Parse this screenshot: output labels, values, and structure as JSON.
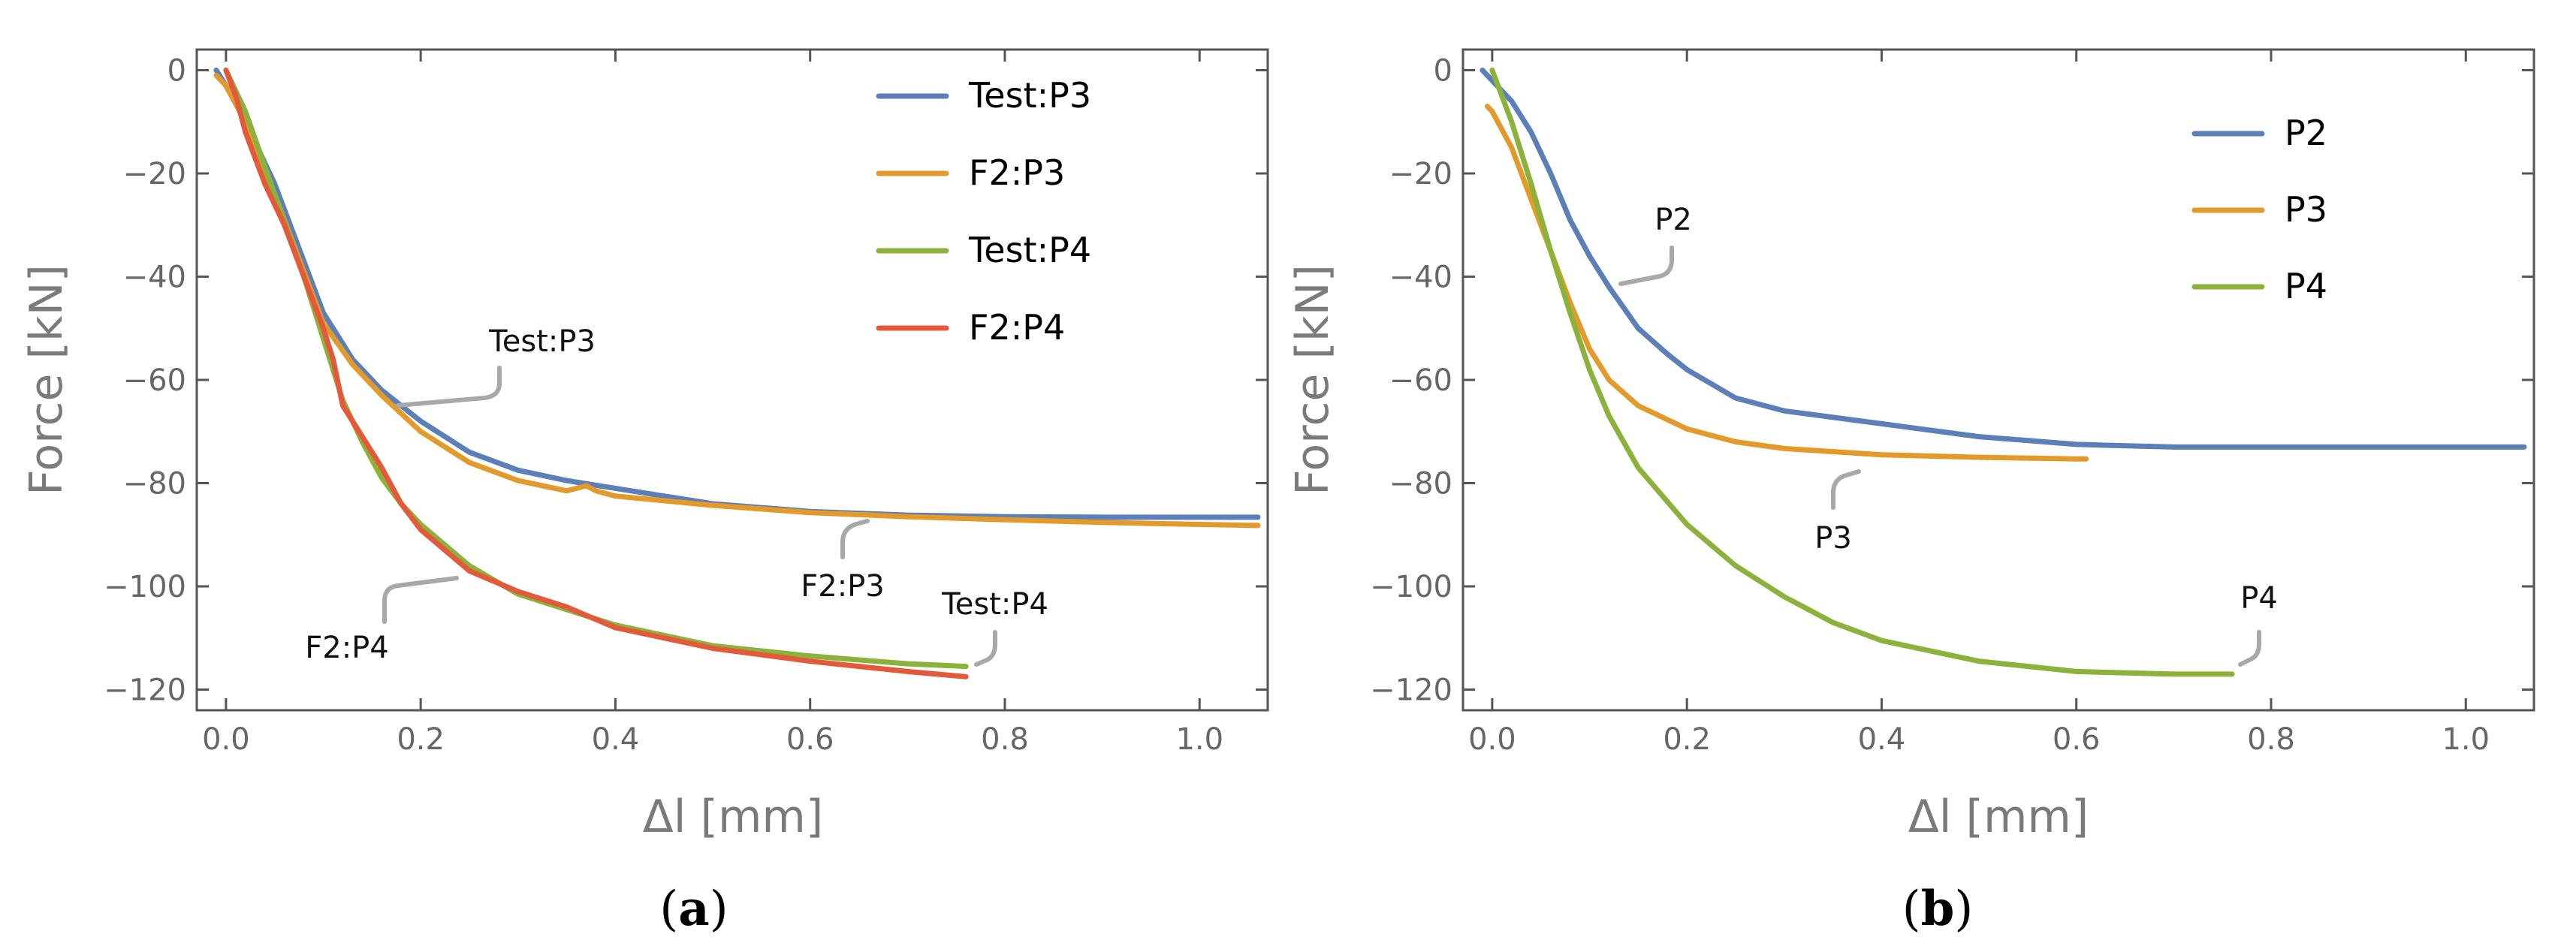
{
  "chart_data": [
    {
      "id": "a",
      "type": "line",
      "caption_letter": "a",
      "xlabel": "Δl [mm]",
      "ylabel": "Force [kN]",
      "xlim": [
        -0.03,
        1.07
      ],
      "ylim": [
        -124,
        4
      ],
      "xticks": [
        0.0,
        0.2,
        0.4,
        0.6,
        0.8,
        1.0
      ],
      "xtick_labels": [
        "0.0",
        "0.2",
        "0.4",
        "0.6",
        "0.8",
        "1.0"
      ],
      "yticks": [
        0,
        -20,
        -40,
        -60,
        -80,
        -100,
        -120
      ],
      "ytick_labels": [
        "0",
        "−20",
        "−40",
        "−60",
        "−80",
        "−100",
        "−120"
      ],
      "legend_position": "top-right",
      "series": [
        {
          "name": "Test:P3",
          "color": "#5b7fb8",
          "x": [
            -0.01,
            0.0,
            0.02,
            0.05,
            0.08,
            0.1,
            0.13,
            0.16,
            0.2,
            0.25,
            0.3,
            0.35,
            0.4,
            0.5,
            0.6,
            0.7,
            0.8,
            0.9,
            1.0,
            1.06
          ],
          "y": [
            0,
            -3,
            -10,
            -22,
            -37,
            -47,
            -56,
            -62,
            -68,
            -74,
            -77.5,
            -79.5,
            -81,
            -84,
            -85.5,
            -86.2,
            -86.5,
            -86.6,
            -86.6,
            -86.6
          ]
        },
        {
          "name": "F2:P3",
          "color": "#e49a2a",
          "x": [
            -0.01,
            0.0,
            0.02,
            0.05,
            0.08,
            0.1,
            0.13,
            0.16,
            0.2,
            0.25,
            0.3,
            0.35,
            0.37,
            0.38,
            0.4,
            0.5,
            0.6,
            0.7,
            0.8,
            0.9,
            1.0,
            1.06
          ],
          "y": [
            -1,
            -3,
            -10,
            -24,
            -39,
            -49,
            -57,
            -63,
            -70,
            -76,
            -79.5,
            -81.5,
            -80.5,
            -81.5,
            -82.5,
            -84.3,
            -85.7,
            -86.5,
            -87.1,
            -87.6,
            -88,
            -88.2
          ]
        },
        {
          "name": "Test:P4",
          "color": "#8bb23a",
          "x": [
            0.0,
            0.02,
            0.05,
            0.08,
            0.1,
            0.12,
            0.14,
            0.16,
            0.18,
            0.2,
            0.25,
            0.3,
            0.35,
            0.4,
            0.45,
            0.5,
            0.6,
            0.7,
            0.76
          ],
          "y": [
            0,
            -8,
            -24,
            -40,
            -52,
            -64,
            -72,
            -79,
            -84,
            -88,
            -96,
            -101.5,
            -104.5,
            -107.5,
            -109.5,
            -111.5,
            -113.5,
            -115,
            -115.5
          ]
        },
        {
          "name": "F2:P4",
          "color": "#e4593a",
          "x": [
            0.0,
            0.01,
            0.02,
            0.04,
            0.06,
            0.08,
            0.1,
            0.11,
            0.12,
            0.14,
            0.16,
            0.18,
            0.2,
            0.25,
            0.3,
            0.35,
            0.4,
            0.5,
            0.6,
            0.7,
            0.76
          ],
          "y": [
            0,
            -5,
            -12,
            -22,
            -30,
            -40,
            -50,
            -56,
            -65,
            -71,
            -77,
            -84,
            -89,
            -97,
            -101,
            -104,
            -108,
            -112,
            -114.5,
            -116.5,
            -117.5
          ]
        }
      ],
      "annotations": [
        {
          "text": "Test:P3",
          "x": 0.315,
          "y": -52
        },
        {
          "text": "F2:P3",
          "x": 0.645,
          "y": -99.5
        },
        {
          "text": "F2:P4",
          "x": 0.135,
          "y": -112
        },
        {
          "text": "Test:P4",
          "x": 0.795,
          "y": -103.5
        }
      ]
    },
    {
      "id": "b",
      "type": "line",
      "caption_letter": "b",
      "xlabel": "Δl [mm]",
      "ylabel": "Force [kN]",
      "xlim": [
        -0.03,
        1.07
      ],
      "ylim": [
        -124,
        4
      ],
      "xticks": [
        0.0,
        0.2,
        0.4,
        0.6,
        0.8,
        1.0
      ],
      "xtick_labels": [
        "0.0",
        "0.2",
        "0.4",
        "0.6",
        "0.8",
        "1.0"
      ],
      "yticks": [
        0,
        -20,
        -40,
        -60,
        -80,
        -100,
        -120
      ],
      "ytick_labels": [
        "0",
        "−20",
        "−40",
        "−60",
        "−80",
        "−100",
        "−120"
      ],
      "legend_position": "top-right",
      "series": [
        {
          "name": "P2",
          "color": "#5b7fb8",
          "x": [
            -0.01,
            0.0,
            0.02,
            0.04,
            0.06,
            0.08,
            0.1,
            0.12,
            0.15,
            0.18,
            0.2,
            0.25,
            0.3,
            0.4,
            0.5,
            0.6,
            0.7,
            0.8,
            0.9,
            1.0,
            1.06
          ],
          "y": [
            0,
            -2,
            -6,
            -12,
            -20,
            -29,
            -36,
            -42,
            -50,
            -55,
            -58,
            -63.5,
            -66,
            -68.5,
            -71,
            -72.5,
            -73,
            -73,
            -73,
            -73,
            -73
          ]
        },
        {
          "name": "P3",
          "color": "#e49a2a",
          "x": [
            -0.005,
            0.0,
            0.02,
            0.04,
            0.06,
            0.08,
            0.1,
            0.12,
            0.15,
            0.2,
            0.25,
            0.3,
            0.4,
            0.5,
            0.6,
            0.61
          ],
          "y": [
            -7,
            -8,
            -15,
            -25,
            -35,
            -45,
            -54,
            -60,
            -65,
            -69.5,
            -72,
            -73.3,
            -74.5,
            -75,
            -75.3,
            -75.3
          ]
        },
        {
          "name": "P4",
          "color": "#8bb23a",
          "x": [
            0.0,
            0.02,
            0.04,
            0.06,
            0.08,
            0.1,
            0.12,
            0.15,
            0.2,
            0.25,
            0.3,
            0.35,
            0.4,
            0.5,
            0.6,
            0.7,
            0.76
          ],
          "y": [
            0,
            -10,
            -22,
            -35,
            -47,
            -58,
            -67,
            -77,
            -88,
            -96,
            -102,
            -107,
            -110.5,
            -114.5,
            -116.5,
            -117,
            -117
          ]
        }
      ],
      "annotations": [
        {
          "text": "P2",
          "x": 0.188,
          "y": -27
        },
        {
          "text": "P3",
          "x": 0.348,
          "y": -91
        },
        {
          "text": "P4",
          "x": 0.79,
          "y": -103
        }
      ]
    }
  ]
}
